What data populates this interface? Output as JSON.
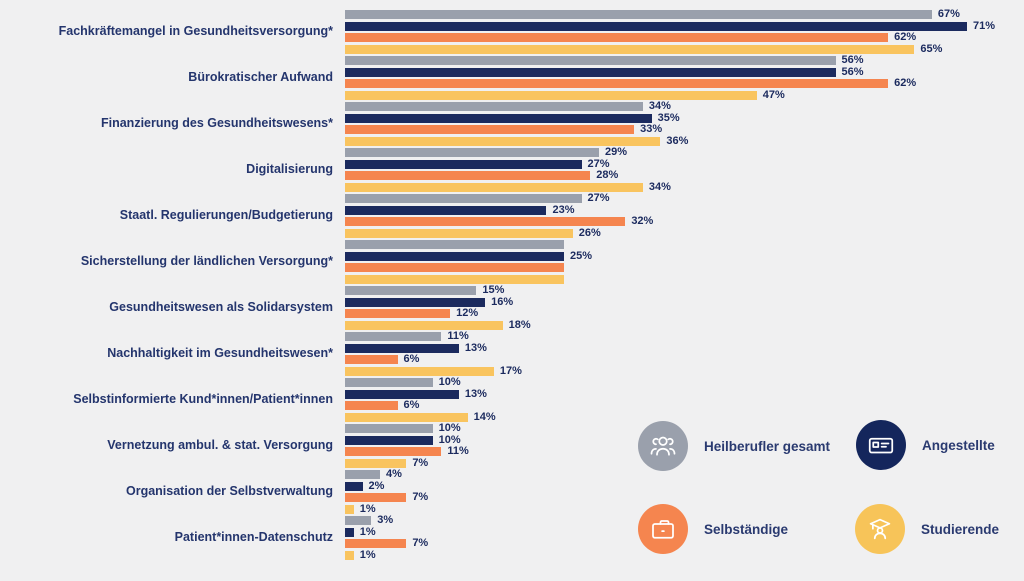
{
  "background": "#f0f0f1",
  "text_color": "#1b2a5e",
  "chart_data": {
    "type": "bar",
    "orientation": "horizontal",
    "unit": "%",
    "xlim": [
      0,
      75
    ],
    "grid": false,
    "legend_position": "bottom-right",
    "categories": [
      "Fachkräftemangel in Gesundheitsversorgung*",
      "Bürokratischer Aufwand",
      "Finanzierung des Gesundheitswesens*",
      "Digitalisierung",
      "Staatl. Regulierungen/Budgetierung",
      "Sicherstellung der ländlichen Versorgung*",
      "Gesundheitswesen als Solidarsystem",
      "Nachhaltigkeit im Gesundheitswesen*",
      "Selbstinformierte Kund*innen/Patient*innen",
      "Vernetzung ambul. & stat. Versorgung",
      "Organisation der Selbstverwaltung",
      "Patient*innen-Datenschutz"
    ],
    "series": [
      {
        "id": "heilberufler-gesamt",
        "name": "Heilberufler gesamt",
        "color": "#9aa0ac",
        "values": [
          67,
          56,
          34,
          29,
          27,
          25,
          15,
          11,
          10,
          10,
          4,
          3
        ],
        "labels": [
          "67%",
          "56%",
          "34%",
          "29%",
          "27%",
          "",
          "15%",
          "11%",
          "10%",
          "10%",
          "4%",
          "3%"
        ]
      },
      {
        "id": "angestellte",
        "name": "Angestellte",
        "color": "#1b2a5e",
        "values": [
          71,
          56,
          35,
          27,
          23,
          25,
          16,
          13,
          13,
          10,
          2,
          1
        ],
        "labels": [
          "71%",
          "56%",
          "35%",
          "27%",
          "23%",
          "25%",
          "16%",
          "13%",
          "13%",
          "10%",
          "2%",
          "1%"
        ]
      },
      {
        "id": "selbstaendige",
        "name": "Selbständige",
        "color": "#f5854f",
        "values": [
          62,
          62,
          33,
          28,
          32,
          25,
          12,
          6,
          6,
          11,
          7,
          7
        ],
        "labels": [
          "62%",
          "62%",
          "33%",
          "28%",
          "32%",
          "",
          "12%",
          "6%",
          "6%",
          "11%",
          "7%",
          "7%"
        ]
      },
      {
        "id": "studierende",
        "name": "Studierende",
        "color": "#f9c45f",
        "values": [
          65,
          47,
          36,
          34,
          26,
          25,
          18,
          17,
          14,
          7,
          1,
          1
        ],
        "labels": [
          "65%",
          "47%",
          "36%",
          "34%",
          "26%",
          "",
          "18%",
          "17%",
          "14%",
          "7%",
          "1%",
          "1%"
        ]
      }
    ]
  },
  "legend": {
    "items": [
      {
        "label": "Heilberufler gesamt",
        "color": "#9aa0ac",
        "icon": "people-group-icon"
      },
      {
        "label": "Angestellte",
        "color": "#14265c",
        "icon": "id-card-icon"
      },
      {
        "label": "Selbständige",
        "color": "#f5854f",
        "icon": "briefcase-icon"
      },
      {
        "label": "Studierende",
        "color": "#f7c459",
        "icon": "graduate-icon"
      }
    ]
  }
}
